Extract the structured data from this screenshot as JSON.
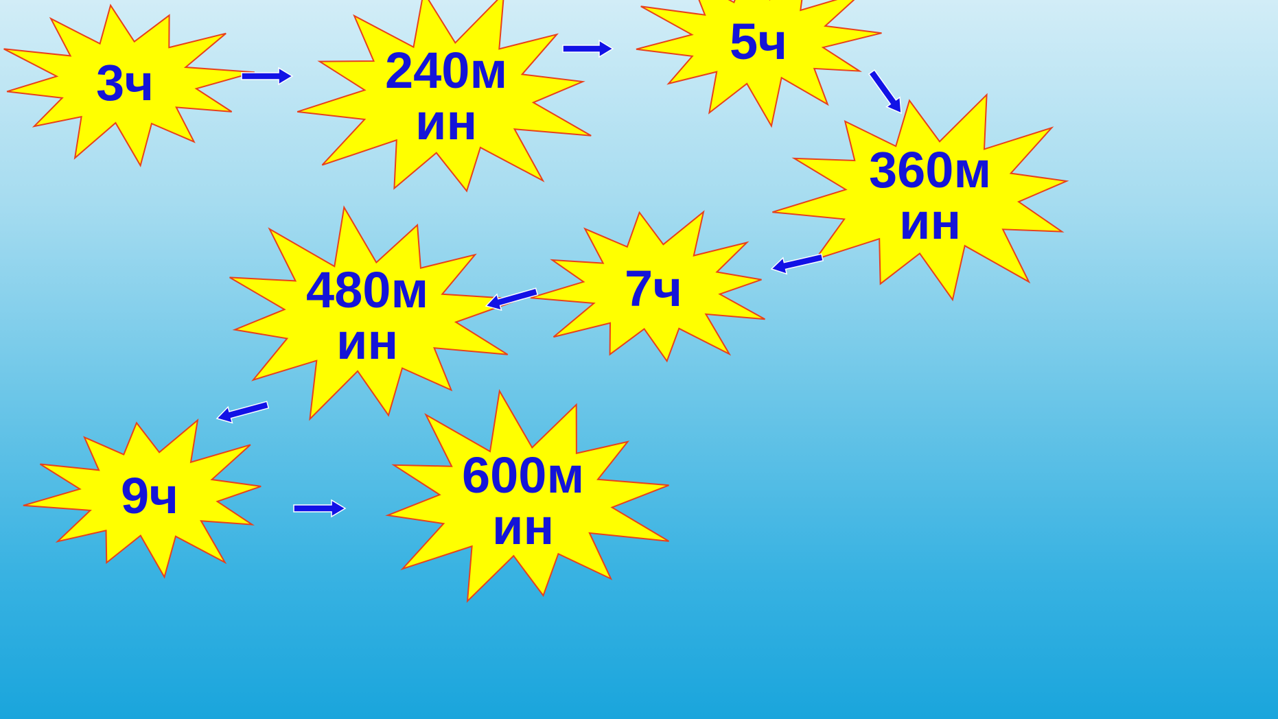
{
  "diagram": {
    "colors": {
      "star_fill": "#ffff00",
      "star_stroke": "#e8401c",
      "text": "#1414d8",
      "arrow": "#1212e6",
      "arrow_outline": "#ffffff"
    },
    "nodes": [
      {
        "id": "n1",
        "label": "3ч"
      },
      {
        "id": "n2",
        "label": "240м\nин"
      },
      {
        "id": "n3",
        "label": "5ч"
      },
      {
        "id": "n4",
        "label": "360м\nин"
      },
      {
        "id": "n5",
        "label": "7ч"
      },
      {
        "id": "n6",
        "label": "480м\nин"
      },
      {
        "id": "n7",
        "label": "9ч"
      },
      {
        "id": "n8",
        "label": "600м\nин"
      }
    ],
    "edges": [
      {
        "from": "n1",
        "to": "n2"
      },
      {
        "from": "n2",
        "to": "n3"
      },
      {
        "from": "n3",
        "to": "n4"
      },
      {
        "from": "n4",
        "to": "n5"
      },
      {
        "from": "n5",
        "to": "n6"
      },
      {
        "from": "n6",
        "to": "n7"
      },
      {
        "from": "n7",
        "to": "n8"
      }
    ]
  }
}
